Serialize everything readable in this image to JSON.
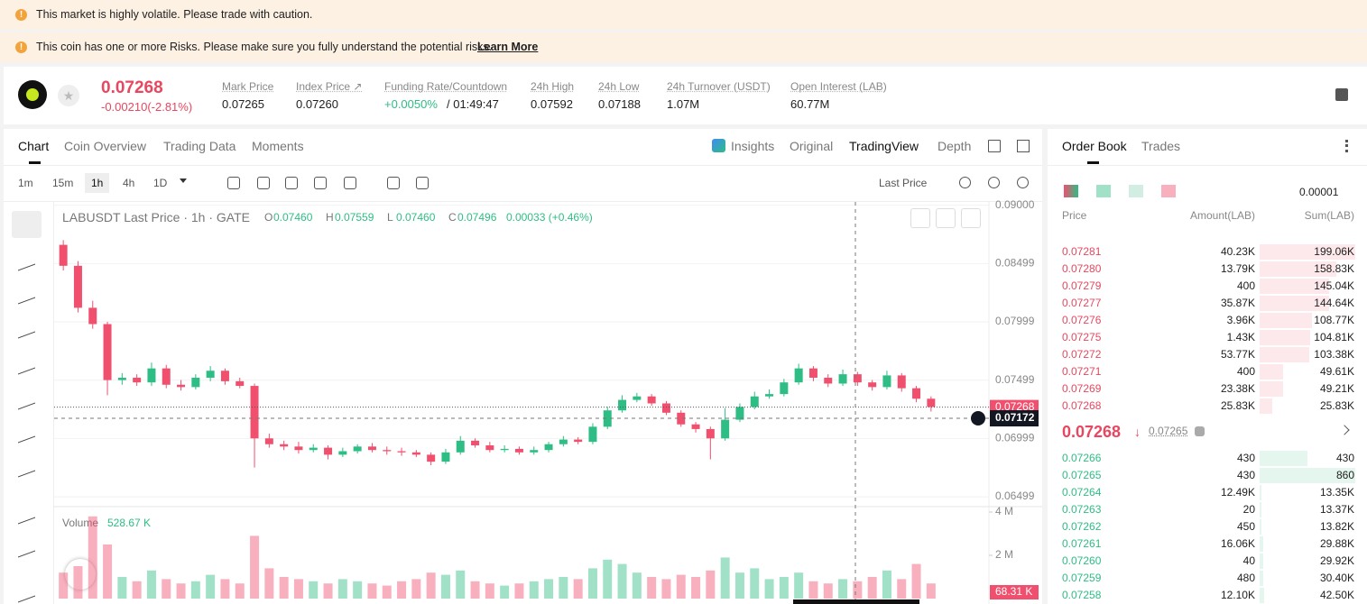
{
  "banners": {
    "volatile": "This market is highly volatile. Please trade with caution.",
    "risks": "This coin has one or more Risks. Please make sure you fully understand the potential risks.",
    "learn_more": "Learn More"
  },
  "header": {
    "price": "0.07268",
    "change": "-0.00210(-2.81%)",
    "stats": [
      {
        "label": "Mark Price",
        "value": "0.07265"
      },
      {
        "label": "Index Price ↗",
        "value": "0.07260"
      },
      {
        "label": "Funding Rate/Countdown",
        "value": "+0.0050%",
        "extra": "/ 01:49:47"
      },
      {
        "label": "24h High",
        "value": "0.07592"
      },
      {
        "label": "24h Low",
        "value": "0.07188"
      },
      {
        "label": "24h Turnover (USDT)",
        "value": "1.07M"
      },
      {
        "label": "Open Interest (LAB)",
        "value": "60.77M"
      }
    ]
  },
  "tabs": [
    "Chart",
    "Coin Overview",
    "Trading Data",
    "Moments"
  ],
  "view_tabs": [
    "Insights",
    "Original",
    "TradingView",
    "Depth"
  ],
  "intervals": [
    "1m",
    "15m",
    "1h",
    "4h",
    "1D"
  ],
  "price_source": "Last Price",
  "legend": {
    "symbol": "LABUSDT Last Price · 1h · GATE",
    "ohlc": [
      {
        "key": "O",
        "value": "0.07460"
      },
      {
        "key": "H",
        "value": "0.07559"
      },
      {
        "key": "L",
        "value": "0.07460"
      },
      {
        "key": "C",
        "value": "0.07496"
      }
    ],
    "change": "0.00033 (+0.46%)"
  },
  "chart_data": {
    "type": "candlestick",
    "open": [
      0.0866,
      0.0848,
      0.0812,
      0.0798,
      0.075,
      0.0752,
      0.0748,
      0.076,
      0.0746,
      0.0744,
      0.0752,
      0.0758,
      0.0749,
      0.0745,
      0.07,
      0.0695,
      0.0693,
      0.069,
      0.0692,
      0.0686,
      0.0689,
      0.0693,
      0.069,
      0.0689,
      0.0688,
      0.0686,
      0.068,
      0.0688,
      0.0698,
      0.0694,
      0.069,
      0.0691,
      0.0688,
      0.069,
      0.0695,
      0.0699,
      0.0697,
      0.071,
      0.0724,
      0.0733,
      0.0736,
      0.073,
      0.0722,
      0.0712,
      0.0708,
      0.07,
      0.0716,
      0.0727,
      0.0736,
      0.0738,
      0.0748,
      0.076,
      0.0752,
      0.0747,
      0.0755,
      0.0748,
      0.0744,
      0.0754,
      0.0743,
      0.0734
    ],
    "high": [
      0.087,
      0.0852,
      0.0818,
      0.08,
      0.0756,
      0.0755,
      0.0765,
      0.0763,
      0.075,
      0.0755,
      0.0762,
      0.076,
      0.0752,
      0.0747,
      0.0704,
      0.0698,
      0.0697,
      0.0695,
      0.0694,
      0.0692,
      0.0695,
      0.0696,
      0.0693,
      0.0692,
      0.069,
      0.0688,
      0.0691,
      0.0702,
      0.07,
      0.0697,
      0.0694,
      0.0693,
      0.0693,
      0.0697,
      0.0702,
      0.0701,
      0.0713,
      0.0727,
      0.0737,
      0.0739,
      0.0738,
      0.0732,
      0.0724,
      0.0714,
      0.071,
      0.0726,
      0.073,
      0.074,
      0.0742,
      0.0751,
      0.0764,
      0.0762,
      0.0755,
      0.0759,
      0.0757,
      0.075,
      0.0758,
      0.0756,
      0.0745,
      0.0736
    ],
    "low": [
      0.0844,
      0.0808,
      0.0794,
      0.0737,
      0.0746,
      0.0745,
      0.0745,
      0.0743,
      0.0741,
      0.0742,
      0.0749,
      0.0746,
      0.0743,
      0.0675,
      0.0692,
      0.069,
      0.0687,
      0.0688,
      0.0682,
      0.0684,
      0.0687,
      0.0688,
      0.0686,
      0.0685,
      0.0684,
      0.0677,
      0.0678,
      0.0686,
      0.0692,
      0.0688,
      0.0688,
      0.0686,
      0.0686,
      0.0688,
      0.0693,
      0.0695,
      0.0695,
      0.0708,
      0.0722,
      0.0731,
      0.0728,
      0.072,
      0.071,
      0.0705,
      0.0682,
      0.0698,
      0.0714,
      0.0725,
      0.0734,
      0.0736,
      0.0746,
      0.0749,
      0.0744,
      0.0745,
      0.0745,
      0.0741,
      0.0742,
      0.074,
      0.0731,
      0.0723
    ],
    "close": [
      0.0848,
      0.0812,
      0.0798,
      0.075,
      0.0752,
      0.0748,
      0.076,
      0.0746,
      0.0744,
      0.0752,
      0.0758,
      0.0749,
      0.0745,
      0.07,
      0.0695,
      0.0693,
      0.069,
      0.0692,
      0.0686,
      0.0689,
      0.0693,
      0.069,
      0.0689,
      0.0688,
      0.0686,
      0.068,
      0.0688,
      0.0698,
      0.0694,
      0.069,
      0.0691,
      0.0688,
      0.069,
      0.0695,
      0.0699,
      0.0697,
      0.071,
      0.0724,
      0.0733,
      0.0736,
      0.073,
      0.0722,
      0.0712,
      0.0708,
      0.07,
      0.0716,
      0.0727,
      0.0736,
      0.0738,
      0.0748,
      0.076,
      0.0752,
      0.0747,
      0.0755,
      0.0748,
      0.0744,
      0.0754,
      0.0743,
      0.0734,
      0.0727
    ],
    "up_color": "#2ebd85",
    "down_color": "#f0506e",
    "ylim": [
      0.0643,
      0.0902
    ],
    "yticks": [
      {
        "value": 0.09,
        "label": "0.09000"
      },
      0.08499,
      0.07999,
      0.07499,
      0.06999,
      0.06499
    ],
    "last_price": {
      "value": 0.07268,
      "label": "0.07268"
    },
    "crosshair_price": {
      "value": 0.07172,
      "label": "0.07172"
    },
    "volume": {
      "title": "Volume",
      "total": "528.67 K",
      "current": "68.31 K",
      "values": [
        1200000,
        1500000,
        3800000,
        2500000,
        1000000,
        800000,
        1300000,
        900000,
        700000,
        800000,
        1100000,
        900000,
        700000,
        2900000,
        1400000,
        1000000,
        900000,
        800000,
        700000,
        900000,
        800000,
        700000,
        600000,
        800000,
        900000,
        1200000,
        1100000,
        1300000,
        800000,
        700000,
        600000,
        700000,
        800000,
        900000,
        1000000,
        900000,
        1400000,
        1800000,
        1600000,
        1200000,
        1000000,
        900000,
        1100000,
        1000000,
        1300000,
        1900000,
        1200000,
        1400000,
        900000,
        1000000,
        1200000,
        800000,
        700000,
        900000,
        800000,
        1000000,
        1300000,
        900000,
        1600000,
        700000
      ],
      "ylim": [
        0,
        4125000
      ],
      "yticks": [
        {
          "value": 4000000,
          "label": "4 M"
        },
        {
          "value": 2000000,
          "label": "2 M"
        }
      ]
    }
  },
  "order_book": {
    "tabs": [
      "Order Book",
      "Trades"
    ],
    "precision": "0.00001",
    "headers": [
      "Price",
      "Amount(LAB)",
      "Sum(LAB)"
    ],
    "asks": [
      [
        "0.07281",
        "40.23K",
        "199.06K"
      ],
      [
        "0.07280",
        "13.79K",
        "158.83K"
      ],
      [
        "0.07279",
        "400",
        "145.04K"
      ],
      [
        "0.07277",
        "35.87K",
        "144.64K"
      ],
      [
        "0.07276",
        "3.96K",
        "108.77K"
      ],
      [
        "0.07275",
        "1.43K",
        "104.81K"
      ],
      [
        "0.07272",
        "53.77K",
        "103.38K"
      ],
      [
        "0.07271",
        "400",
        "49.61K"
      ],
      [
        "0.07269",
        "23.38K",
        "49.21K"
      ],
      [
        "0.07268",
        "25.83K",
        "25.83K"
      ]
    ],
    "last": "0.07268",
    "mark": "0.07265",
    "bids": [
      [
        "0.07266",
        "430",
        "430"
      ],
      [
        "0.07265",
        "430",
        "860"
      ],
      [
        "0.07264",
        "12.49K",
        "13.35K"
      ],
      [
        "0.07263",
        "20",
        "13.37K"
      ],
      [
        "0.07262",
        "450",
        "13.82K"
      ],
      [
        "0.07261",
        "16.06K",
        "29.88K"
      ],
      [
        "0.07260",
        "40",
        "29.92K"
      ],
      [
        "0.07259",
        "480",
        "30.40K"
      ],
      [
        "0.07258",
        "12.10K",
        "42.50K"
      ]
    ]
  }
}
